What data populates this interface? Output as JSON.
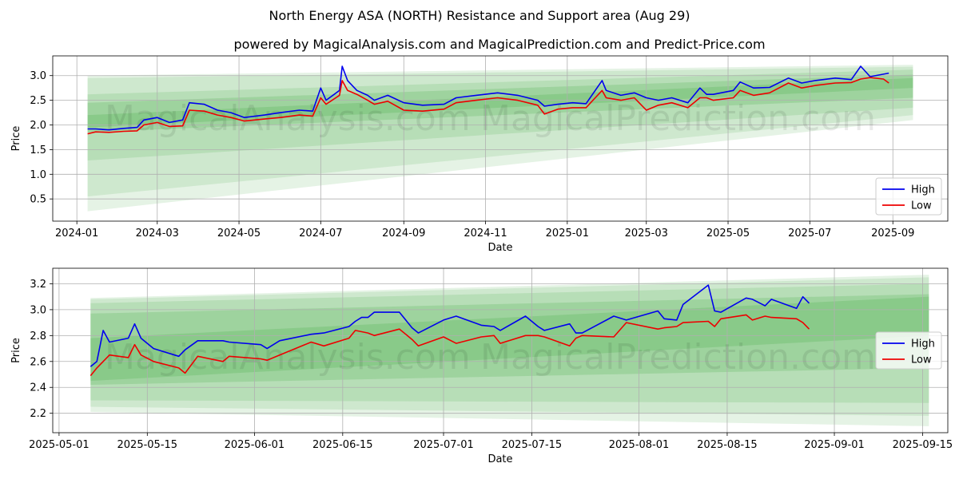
{
  "title": "North Energy ASA (NORTH) Resistance and Support area (Aug 29)",
  "subtitle": "powered by MagicalAnalysis.com and MagicalPrediction.com and Predict-Price.com",
  "watermarks": [
    "MagicalAnalysis.com",
    "MagicalPrediction.com"
  ],
  "colors": {
    "high": "#0000ee",
    "low": "#ee0000",
    "band": "#2ca02c",
    "grid": "#b0b0b0"
  },
  "chart_data": [
    {
      "type": "line",
      "xlabel": "Date",
      "ylabel": "Price",
      "grid": true,
      "legend": "bottom-right",
      "ylim": [
        0.05,
        3.4
      ],
      "xlim": [
        "2023-12-14",
        "2025-10-12"
      ],
      "xticks": [
        "2024-01",
        "2024-03",
        "2024-05",
        "2024-07",
        "2024-09",
        "2024-11",
        "2025-01",
        "2025-03",
        "2025-05",
        "2025-07",
        "2025-09"
      ],
      "yticks": [
        0.5,
        1.0,
        1.5,
        2.0,
        2.5,
        3.0
      ],
      "bands": [
        {
          "x": [
            "2024-01-09",
            "2025-09-16"
          ],
          "upper": [
            3.0,
            3.22
          ],
          "lower": [
            0.25,
            2.1
          ],
          "opacity": 0.12
        },
        {
          "x": [
            "2024-01-09",
            "2025-09-16"
          ],
          "upper": [
            2.95,
            3.18
          ],
          "lower": [
            0.55,
            2.2
          ],
          "opacity": 0.12
        },
        {
          "x": [
            "2024-01-09",
            "2025-09-16"
          ],
          "upper": [
            2.62,
            3.12
          ],
          "lower": [
            1.28,
            2.35
          ],
          "opacity": 0.14
        },
        {
          "x": [
            "2024-01-09",
            "2025-09-16"
          ],
          "upper": [
            2.45,
            3.02
          ],
          "lower": [
            1.85,
            2.55
          ],
          "opacity": 0.18
        },
        {
          "x": [
            "2024-01-09",
            "2025-09-16"
          ],
          "upper": [
            2.2,
            2.95
          ],
          "lower": [
            1.95,
            2.75
          ],
          "opacity": 0.18
        }
      ],
      "series": [
        {
          "name": "High",
          "color": "#0000ee",
          "x": [
            "2024-01-09",
            "2024-01-15",
            "2024-01-25",
            "2024-02-05",
            "2024-02-15",
            "2024-02-20",
            "2024-03-01",
            "2024-03-10",
            "2024-03-20",
            "2024-03-25",
            "2024-04-05",
            "2024-04-15",
            "2024-04-25",
            "2024-05-05",
            "2024-05-20",
            "2024-06-01",
            "2024-06-15",
            "2024-06-25",
            "2024-07-01",
            "2024-07-05",
            "2024-07-15",
            "2024-07-17",
            "2024-07-21",
            "2024-07-28",
            "2024-08-05",
            "2024-08-10",
            "2024-08-20",
            "2024-09-01",
            "2024-09-15",
            "2024-10-01",
            "2024-10-10",
            "2024-10-25",
            "2024-11-10",
            "2024-11-25",
            "2024-12-10",
            "2024-12-15",
            "2024-12-25",
            "2025-01-05",
            "2025-01-15",
            "2025-01-27",
            "2025-01-30",
            "2025-02-10",
            "2025-02-20",
            "2025-03-01",
            "2025-03-10",
            "2025-03-20",
            "2025-04-01",
            "2025-04-10",
            "2025-04-15",
            "2025-04-20",
            "2025-05-05",
            "2025-05-10",
            "2025-05-20",
            "2025-06-01",
            "2025-06-15",
            "2025-06-25",
            "2025-07-05",
            "2025-07-20",
            "2025-08-01",
            "2025-08-08",
            "2025-08-15",
            "2025-08-25",
            "2025-08-29"
          ],
          "values": [
            1.92,
            1.92,
            1.9,
            1.93,
            1.95,
            2.1,
            2.15,
            2.05,
            2.1,
            2.45,
            2.42,
            2.3,
            2.25,
            2.15,
            2.2,
            2.25,
            2.3,
            2.28,
            2.75,
            2.5,
            2.7,
            3.19,
            2.9,
            2.7,
            2.6,
            2.5,
            2.6,
            2.45,
            2.4,
            2.42,
            2.55,
            2.6,
            2.65,
            2.6,
            2.5,
            2.38,
            2.42,
            2.45,
            2.43,
            2.9,
            2.7,
            2.6,
            2.65,
            2.55,
            2.5,
            2.55,
            2.45,
            2.75,
            2.62,
            2.62,
            2.7,
            2.87,
            2.75,
            2.76,
            2.95,
            2.85,
            2.9,
            2.95,
            2.92,
            3.19,
            2.98,
            3.03,
            3.05
          ]
        },
        {
          "name": "Low",
          "color": "#ee0000",
          "x": [
            "2024-01-09",
            "2024-01-15",
            "2024-01-25",
            "2024-02-05",
            "2024-02-15",
            "2024-02-20",
            "2024-03-01",
            "2024-03-10",
            "2024-03-20",
            "2024-03-25",
            "2024-04-05",
            "2024-04-15",
            "2024-04-25",
            "2024-05-05",
            "2024-05-20",
            "2024-06-01",
            "2024-06-15",
            "2024-06-25",
            "2024-07-01",
            "2024-07-05",
            "2024-07-15",
            "2024-07-17",
            "2024-07-21",
            "2024-07-28",
            "2024-08-05",
            "2024-08-10",
            "2024-08-20",
            "2024-09-01",
            "2024-09-15",
            "2024-10-01",
            "2024-10-10",
            "2024-10-25",
            "2024-11-10",
            "2024-11-25",
            "2024-12-10",
            "2024-12-15",
            "2024-12-25",
            "2025-01-05",
            "2025-01-15",
            "2025-01-27",
            "2025-01-30",
            "2025-02-10",
            "2025-02-20",
            "2025-03-01",
            "2025-03-10",
            "2025-03-20",
            "2025-04-01",
            "2025-04-10",
            "2025-04-15",
            "2025-04-20",
            "2025-05-05",
            "2025-05-10",
            "2025-05-20",
            "2025-06-01",
            "2025-06-15",
            "2025-06-25",
            "2025-07-05",
            "2025-07-20",
            "2025-08-01",
            "2025-08-08",
            "2025-08-15",
            "2025-08-25",
            "2025-08-29"
          ],
          "values": [
            1.82,
            1.86,
            1.85,
            1.87,
            1.88,
            2.0,
            2.05,
            1.97,
            1.98,
            2.3,
            2.28,
            2.2,
            2.15,
            2.08,
            2.12,
            2.15,
            2.2,
            2.18,
            2.55,
            2.42,
            2.6,
            2.9,
            2.7,
            2.62,
            2.5,
            2.42,
            2.48,
            2.3,
            2.28,
            2.32,
            2.45,
            2.5,
            2.55,
            2.5,
            2.4,
            2.22,
            2.32,
            2.35,
            2.35,
            2.7,
            2.55,
            2.5,
            2.55,
            2.3,
            2.4,
            2.45,
            2.35,
            2.55,
            2.55,
            2.5,
            2.55,
            2.7,
            2.6,
            2.65,
            2.85,
            2.75,
            2.8,
            2.85,
            2.86,
            2.93,
            2.96,
            2.93,
            2.85
          ]
        }
      ]
    },
    {
      "type": "line",
      "xlabel": "Date",
      "ylabel": "Price",
      "grid": true,
      "legend": "center-right",
      "ylim": [
        2.05,
        3.32
      ],
      "xlim": [
        "2025-04-30",
        "2025-09-19"
      ],
      "xticks": [
        "2025-05-01",
        "2025-05-15",
        "2025-06-01",
        "2025-06-15",
        "2025-07-01",
        "2025-07-15",
        "2025-08-01",
        "2025-08-15",
        "2025-09-01",
        "2025-09-15"
      ],
      "yticks": [
        2.2,
        2.4,
        2.6,
        2.8,
        3.0,
        3.2
      ],
      "bands": [
        {
          "x": [
            "2025-05-06",
            "2025-09-16"
          ],
          "upper": [
            3.09,
            3.27
          ],
          "lower": [
            2.21,
            2.1
          ],
          "opacity": 0.12
        },
        {
          "x": [
            "2025-05-06",
            "2025-09-16"
          ],
          "upper": [
            3.08,
            3.25
          ],
          "lower": [
            2.25,
            2.18
          ],
          "opacity": 0.12
        },
        {
          "x": [
            "2025-05-06",
            "2025-09-16"
          ],
          "upper": [
            3.05,
            3.2
          ],
          "lower": [
            2.3,
            2.28
          ],
          "opacity": 0.14
        },
        {
          "x": [
            "2025-05-06",
            "2025-09-16"
          ],
          "upper": [
            2.97,
            3.12
          ],
          "lower": [
            2.42,
            2.55
          ],
          "opacity": 0.18
        },
        {
          "x": [
            "2025-05-06",
            "2025-09-16"
          ],
          "upper": [
            2.78,
            3.1
          ],
          "lower": [
            2.45,
            2.8
          ],
          "opacity": 0.18
        }
      ],
      "series": [
        {
          "name": "High",
          "color": "#0000ee",
          "x": [
            "2025-05-06",
            "2025-05-07",
            "2025-05-08",
            "2025-05-09",
            "2025-05-12",
            "2025-05-13",
            "2025-05-14",
            "2025-05-16",
            "2025-05-20",
            "2025-05-21",
            "2025-05-23",
            "2025-05-27",
            "2025-05-28",
            "2025-06-02",
            "2025-06-03",
            "2025-06-05",
            "2025-06-10",
            "2025-06-12",
            "2025-06-16",
            "2025-06-17",
            "2025-06-18",
            "2025-06-19",
            "2025-06-20",
            "2025-06-24",
            "2025-06-26",
            "2025-06-27",
            "2025-07-01",
            "2025-07-03",
            "2025-07-07",
            "2025-07-09",
            "2025-07-10",
            "2025-07-14",
            "2025-07-16",
            "2025-07-17",
            "2025-07-21",
            "2025-07-22",
            "2025-07-23",
            "2025-07-28",
            "2025-07-30",
            "2025-08-04",
            "2025-08-05",
            "2025-08-07",
            "2025-08-08",
            "2025-08-12",
            "2025-08-13",
            "2025-08-14",
            "2025-08-18",
            "2025-08-19",
            "2025-08-21",
            "2025-08-22",
            "2025-08-26",
            "2025-08-27",
            "2025-08-28"
          ],
          "values": [
            2.56,
            2.6,
            2.84,
            2.75,
            2.78,
            2.89,
            2.78,
            2.7,
            2.64,
            2.69,
            2.76,
            2.76,
            2.75,
            2.73,
            2.7,
            2.76,
            2.81,
            2.82,
            2.87,
            2.91,
            2.94,
            2.94,
            2.98,
            2.98,
            2.86,
            2.82,
            2.92,
            2.95,
            2.88,
            2.87,
            2.84,
            2.95,
            2.87,
            2.84,
            2.89,
            2.82,
            2.82,
            2.95,
            2.92,
            2.99,
            2.93,
            2.92,
            3.04,
            3.19,
            2.99,
            2.98,
            3.09,
            3.08,
            3.03,
            3.08,
            3.01,
            3.1,
            3.05
          ]
        },
        {
          "name": "Low",
          "color": "#ee0000",
          "x": [
            "2025-05-06",
            "2025-05-07",
            "2025-05-08",
            "2025-05-09",
            "2025-05-12",
            "2025-05-13",
            "2025-05-14",
            "2025-05-16",
            "2025-05-20",
            "2025-05-21",
            "2025-05-23",
            "2025-05-27",
            "2025-05-28",
            "2025-06-02",
            "2025-06-03",
            "2025-06-05",
            "2025-06-10",
            "2025-06-12",
            "2025-06-16",
            "2025-06-17",
            "2025-06-18",
            "2025-06-19",
            "2025-06-20",
            "2025-06-24",
            "2025-06-26",
            "2025-06-27",
            "2025-07-01",
            "2025-07-03",
            "2025-07-07",
            "2025-07-09",
            "2025-07-10",
            "2025-07-14",
            "2025-07-16",
            "2025-07-17",
            "2025-07-21",
            "2025-07-22",
            "2025-07-23",
            "2025-07-28",
            "2025-07-30",
            "2025-08-04",
            "2025-08-05",
            "2025-08-07",
            "2025-08-08",
            "2025-08-12",
            "2025-08-13",
            "2025-08-14",
            "2025-08-18",
            "2025-08-19",
            "2025-08-21",
            "2025-08-22",
            "2025-08-26",
            "2025-08-27",
            "2025-08-28"
          ],
          "values": [
            2.49,
            2.55,
            2.6,
            2.65,
            2.63,
            2.73,
            2.65,
            2.6,
            2.55,
            2.51,
            2.64,
            2.6,
            2.64,
            2.62,
            2.61,
            2.65,
            2.75,
            2.72,
            2.78,
            2.84,
            2.83,
            2.82,
            2.8,
            2.85,
            2.77,
            2.72,
            2.79,
            2.74,
            2.79,
            2.8,
            2.74,
            2.8,
            2.8,
            2.79,
            2.72,
            2.78,
            2.8,
            2.79,
            2.9,
            2.85,
            2.86,
            2.87,
            2.9,
            2.91,
            2.87,
            2.93,
            2.96,
            2.92,
            2.95,
            2.94,
            2.93,
            2.9,
            2.85
          ]
        }
      ]
    }
  ]
}
